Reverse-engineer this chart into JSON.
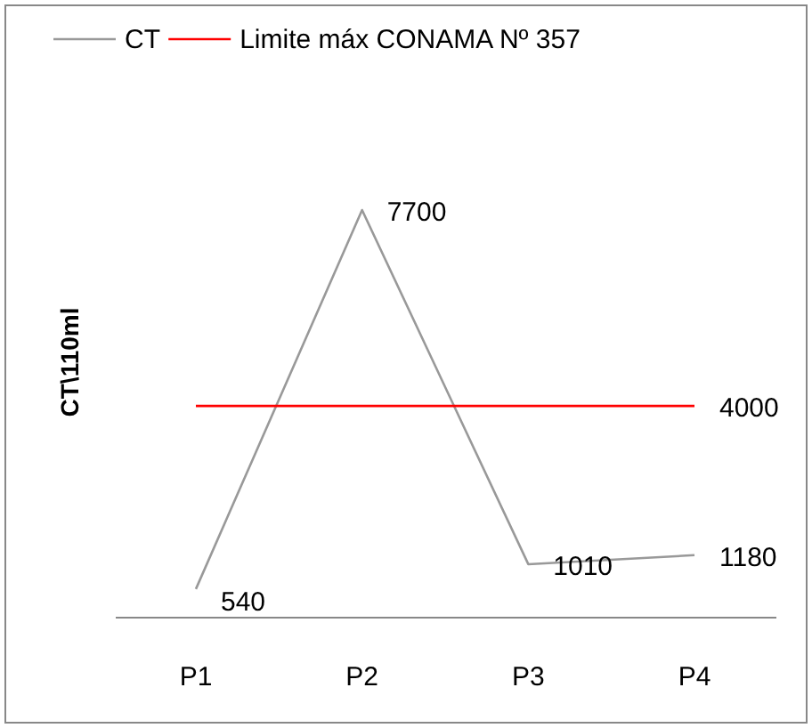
{
  "chart_data": {
    "type": "line",
    "ylabel": "CT\\110ml",
    "categories": [
      "P1",
      "P2",
      "P3",
      "P4"
    ],
    "series": [
      {
        "name": "CT",
        "color": "#999999",
        "values": [
          540,
          7700,
          1010,
          1180
        ],
        "value_labels": [
          "540",
          "7700",
          "1010",
          "1180"
        ]
      },
      {
        "name": "Limite máx CONAMA Nº 357",
        "color": "#ff0000",
        "values": [
          4000,
          4000,
          4000,
          4000
        ],
        "value_labels": [
          null,
          null,
          null,
          "4000"
        ]
      }
    ],
    "tick_labels": "x",
    "legend": "top",
    "marker": "none",
    "line_style": "solid"
  }
}
